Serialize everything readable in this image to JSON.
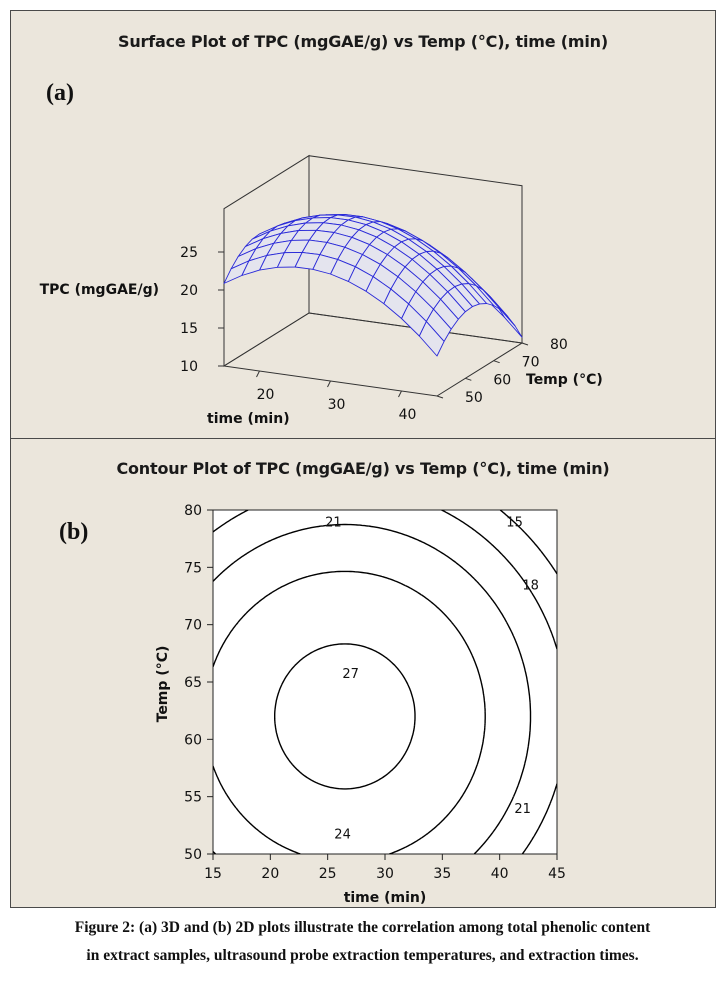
{
  "panels": {
    "a": {
      "label": "(a)",
      "title": "Surface Plot of TPC  (mgGAE/g)  vs Temp (°C), time (min)"
    },
    "b": {
      "label": "(b)",
      "title": "Contour Plot of TPC  (mgGAE/g)  vs Temp (°C), time (min)"
    }
  },
  "caption": {
    "line1": "Figure 2: (a) 3D and (b) 2D plots illustrate the correlation among total phenolic content",
    "line2": "in extract samples, ultrasound probe extraction temperatures, and extraction times."
  },
  "colors": {
    "panel_bg": "#ebe6dc",
    "surface_mesh": "#2a2ad8",
    "surface_fill": "#e4e4ee",
    "contour": "#000000"
  },
  "chart_data": [
    {
      "type": "surface",
      "title": "Surface Plot of TPC  (mgGAE/g)  vs Temp (°C), time (min)",
      "zlabel": "TPC (mgGAE/g)",
      "xlabel": "time (min)",
      "ylabel": "Temp (°C)",
      "x_ticks": [
        20,
        30,
        40
      ],
      "y_ticks": [
        50,
        60,
        70,
        80
      ],
      "z_ticks": [
        10,
        15,
        20,
        25
      ],
      "x_range": [
        15,
        45
      ],
      "y_range": [
        50,
        80
      ],
      "z_range": [
        10,
        28
      ],
      "grid_x": [
        15,
        17.5,
        20,
        22.5,
        25,
        27.5,
        30,
        32.5,
        35,
        37.5,
        40,
        42.5,
        45
      ],
      "grid_y": [
        50,
        52.5,
        55,
        57.5,
        60,
        62.5,
        65,
        67.5,
        70,
        72.5,
        75,
        77.5,
        80
      ],
      "model": "TPC = 28 - 0.0267*(time-26.5)^2 - 0.025*(Temp-62)^2"
    },
    {
      "type": "contour",
      "title": "Contour Plot of TPC  (mgGAE/g)  vs Temp (°C), time (min)",
      "xlabel": "time (min)",
      "ylabel": "Temp (°C)",
      "xlim": [
        15,
        45
      ],
      "ylim": [
        50,
        80
      ],
      "x_ticks": [
        15,
        20,
        25,
        30,
        35,
        40,
        45
      ],
      "y_ticks": [
        50,
        55,
        60,
        65,
        70,
        75,
        80
      ],
      "levels": [
        15,
        18,
        21,
        24,
        27
      ],
      "contour_labels": [
        {
          "text": "15",
          "time": 41.3,
          "temp": 79.0
        },
        {
          "text": "18",
          "time": 42.7,
          "temp": 73.5
        },
        {
          "text": "21",
          "time": 25.5,
          "temp": 79.0
        },
        {
          "text": "21",
          "time": 42.0,
          "temp": 54.0
        },
        {
          "text": "24",
          "time": 26.3,
          "temp": 51.8
        },
        {
          "text": "27",
          "time": 27.0,
          "temp": 65.8
        }
      ]
    }
  ]
}
